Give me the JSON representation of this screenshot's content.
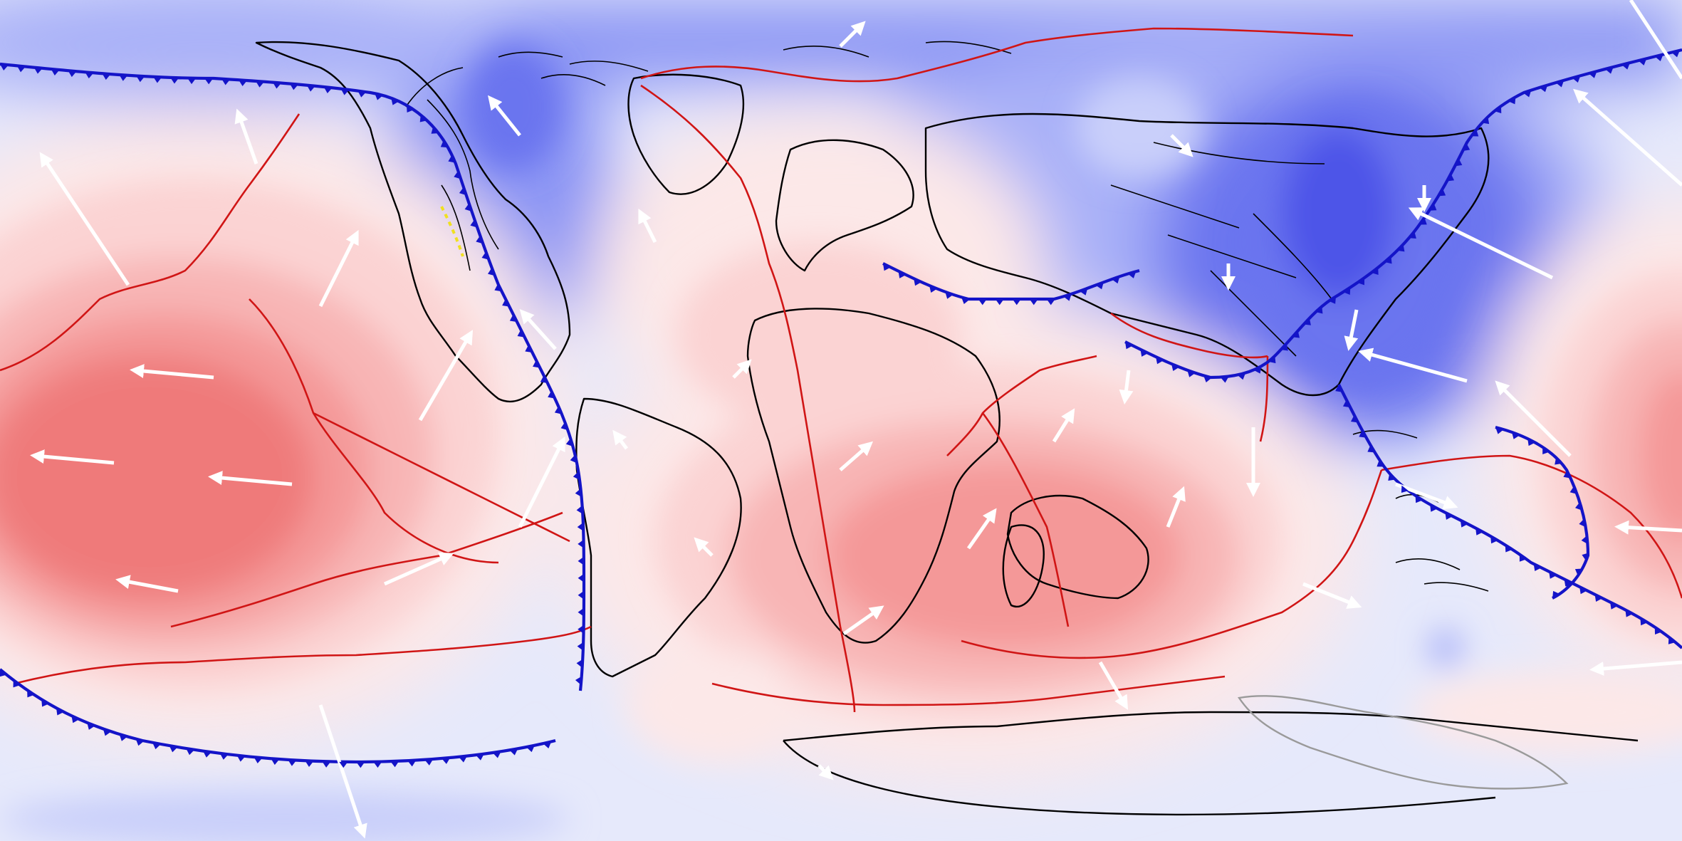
{
  "map": {
    "projection": "equirectangular",
    "field_colors": {
      "positive_levels": [
        "#fce8e8",
        "#fbd3d3",
        "#f8b5b5",
        "#f49898",
        "#ef7a7a",
        "#ea6060"
      ],
      "negative_levels": [
        "#e6e9fb",
        "#c9cffa",
        "#a9b1f8",
        "#8a94f4",
        "#6b75ef",
        "#4d55e8"
      ]
    },
    "line_colors": {
      "coastlines": "#000000",
      "plate_boundaries": "#d01515",
      "subduction_zones": "#1414c8",
      "velocity_vectors": "#ffffff",
      "ridge_highlight": "#f0e020"
    },
    "icons": {
      "velocity_vector": "arrow-icon",
      "subduction_teeth": "triangle-icon"
    }
  }
}
